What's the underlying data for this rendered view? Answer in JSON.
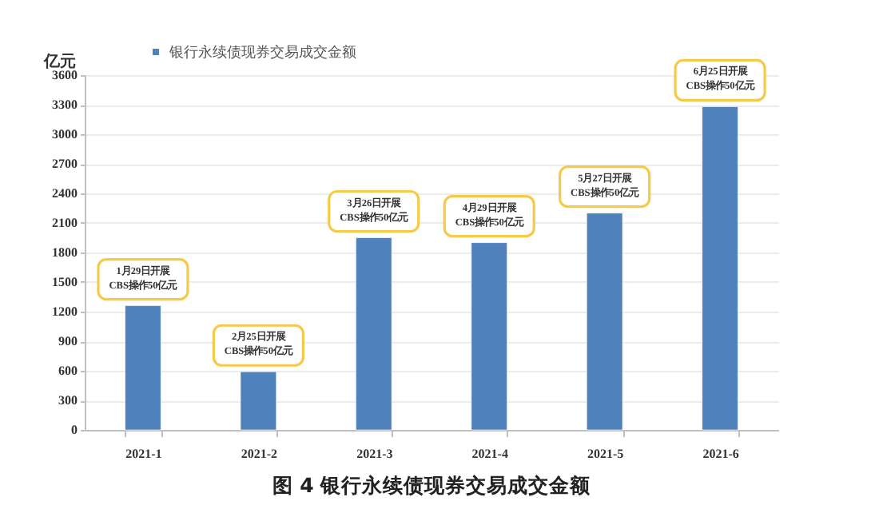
{
  "chart_data": {
    "type": "bar",
    "title": "图 4  银行永续债现券交易成交金额",
    "ylabel": "亿元",
    "categories": [
      "2021-1",
      "2021-2",
      "2021-3",
      "2021-4",
      "2021-5",
      "2021-6"
    ],
    "series": [
      {
        "name": "银行永续债现券交易成交金额",
        "color": "#4f81bd",
        "values": [
          1260,
          590,
          1950,
          1900,
          2200,
          3280
        ]
      }
    ],
    "ylim": [
      0,
      3600
    ],
    "yticks": [
      0,
      300,
      600,
      900,
      1200,
      1500,
      1800,
      2100,
      2400,
      2700,
      3000,
      3300,
      3600
    ],
    "grid": "y",
    "legend": "top left",
    "annotations": [
      {
        "text": "1月29日开展\nCBS操作50亿元",
        "x": "2021-1",
        "y": 1260
      },
      {
        "text": "2月25日开展\nCBS操作50亿元",
        "x": "2021-2",
        "y": 590
      },
      {
        "text": "3月26日开展\nCBS操作50亿元",
        "x": "2021-3",
        "y": 1950
      },
      {
        "text": "4月29日开展\nCBS操作50亿元",
        "x": "2021-4",
        "y": 1900
      },
      {
        "text": "5月27日开展\nCBS操作50亿元",
        "x": "2021-5",
        "y": 2200
      },
      {
        "text": "6月25日开展\nCBS操作50亿元",
        "x": "2021-6",
        "y": 3280
      }
    ]
  }
}
